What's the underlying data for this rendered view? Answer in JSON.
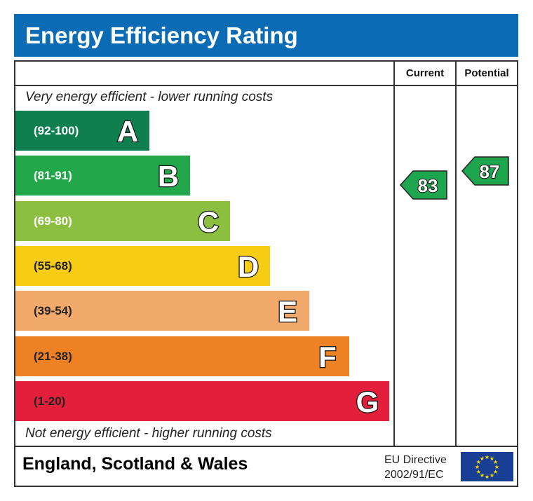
{
  "title": "Energy Efficiency Rating",
  "columns": {
    "current": "Current",
    "potential": "Potential"
  },
  "top_note": "Very energy efficient - lower running costs",
  "bottom_note": "Not energy efficient - higher running costs",
  "footer": {
    "region": "England, Scotland & Wales",
    "directive_line1": "EU Directive",
    "directive_line2": "2002/91/EC"
  },
  "chart_data": {
    "type": "bar",
    "categories": [
      "A",
      "B",
      "C",
      "D",
      "E",
      "F",
      "G"
    ],
    "ranges": [
      "(92-100)",
      "(81-91)",
      "(69-80)",
      "(55-68)",
      "(39-54)",
      "(21-38)",
      "(1-20)"
    ],
    "colors": [
      "#107f4f",
      "#22a84b",
      "#8cbe3f",
      "#f6cc14",
      "#f2aa6c",
      "#ee8124",
      "#e31f3b"
    ],
    "current": {
      "value": 83,
      "band": "B",
      "color": "#1ea64f"
    },
    "potential": {
      "value": 87,
      "band": "B",
      "color": "#1ea64f"
    }
  }
}
